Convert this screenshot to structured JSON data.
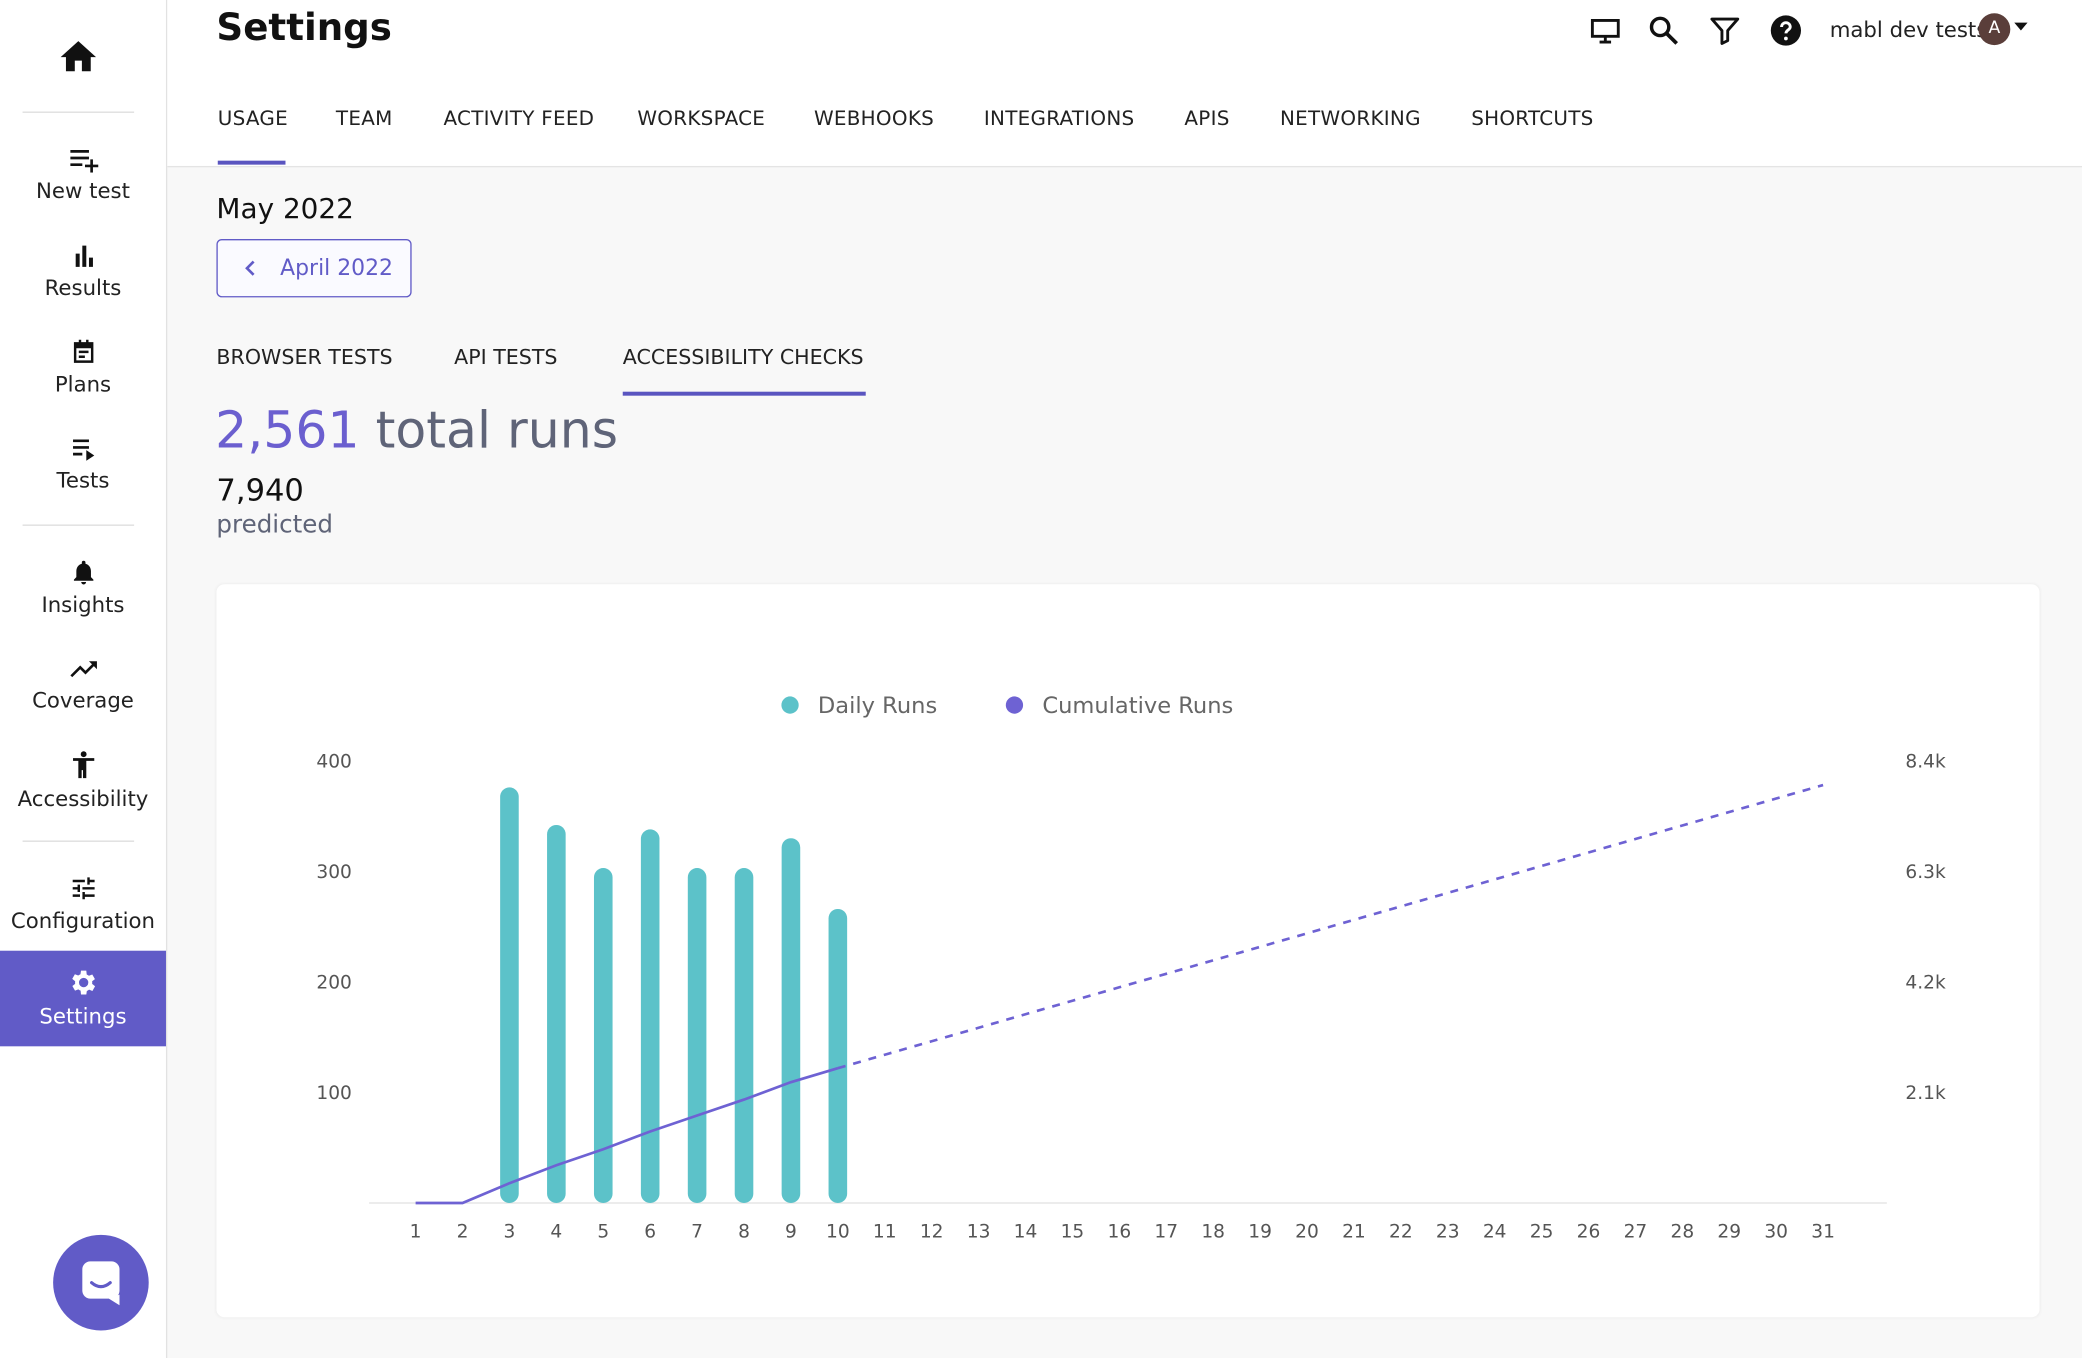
{
  "sidebar": {
    "items": [
      "New test",
      "Results",
      "Plans",
      "Tests",
      "Insights",
      "Coverage",
      "Accessibility",
      "Configuration",
      "Settings"
    ]
  },
  "header": {
    "title": "Settings",
    "account": "mabl dev tests",
    "avatar": "A"
  },
  "tabs": [
    "USAGE",
    "TEAM",
    "ACTIVITY FEED",
    "WORKSPACE",
    "WEBHOOKS",
    "INTEGRATIONS",
    "APIS",
    "NETWORKING",
    "SHORTCUTS"
  ],
  "period": {
    "month": "May 2022",
    "previous": "April 2022"
  },
  "subtabs": [
    "BROWSER TESTS",
    "API TESTS",
    "ACCESSIBILITY CHECKS"
  ],
  "summary": {
    "total": "2,561",
    "total_label": "total runs",
    "predicted": "7,940",
    "predicted_label": "predicted"
  },
  "chart_data": {
    "type": "bar_line",
    "categories": [
      "1",
      "2",
      "3",
      "4",
      "5",
      "6",
      "7",
      "8",
      "9",
      "10",
      "11",
      "12",
      "13",
      "14",
      "15",
      "16",
      "17",
      "18",
      "19",
      "20",
      "21",
      "22",
      "23",
      "24",
      "25",
      "26",
      "27",
      "28",
      "29",
      "30",
      "31"
    ],
    "series": [
      {
        "name": "Daily Runs",
        "color": "#5cc2c9",
        "values": [
          0,
          0,
          376,
          342,
          303,
          338,
          303,
          303,
          330,
          266,
          null,
          null,
          null,
          null,
          null,
          null,
          null,
          null,
          null,
          null,
          null,
          null,
          null,
          null,
          null,
          null,
          null,
          null,
          null,
          null,
          null
        ]
      },
      {
        "name": "Cumulative Runs",
        "color": "#6e62d3",
        "axis": "y2",
        "values": [
          0,
          0,
          376,
          718,
          1021,
          1359,
          1662,
          1965,
          2295,
          2561,
          null,
          null,
          null,
          null,
          null,
          null,
          null,
          null,
          null,
          null,
          null,
          null,
          null,
          null,
          null,
          null,
          null,
          null,
          null,
          null,
          null
        ]
      },
      {
        "color": "#6e62d3",
        "axis": "y2",
        "dashed": true,
        "values": [
          null,
          null,
          null,
          null,
          null,
          null,
          null,
          null,
          null,
          2561,
          2817,
          3073,
          3329,
          3586,
          3842,
          4098,
          4354,
          4610,
          4866,
          5122,
          5379,
          5635,
          5891,
          6147,
          6403,
          6659,
          6915,
          7172,
          7428,
          7684,
          7940
        ]
      }
    ],
    "ylim": [
      0,
      400
    ],
    "yticks": [
      100,
      200,
      300,
      400
    ],
    "y2lim": [
      0,
      8400
    ],
    "y2ticks": [
      {
        "value": 2100,
        "label": "2.1k"
      },
      {
        "value": 4200,
        "label": "4.2k"
      },
      {
        "value": 6300,
        "label": "6.3k"
      },
      {
        "value": 8400,
        "label": "8.4k"
      }
    ],
    "grid": false,
    "legend": "top"
  }
}
